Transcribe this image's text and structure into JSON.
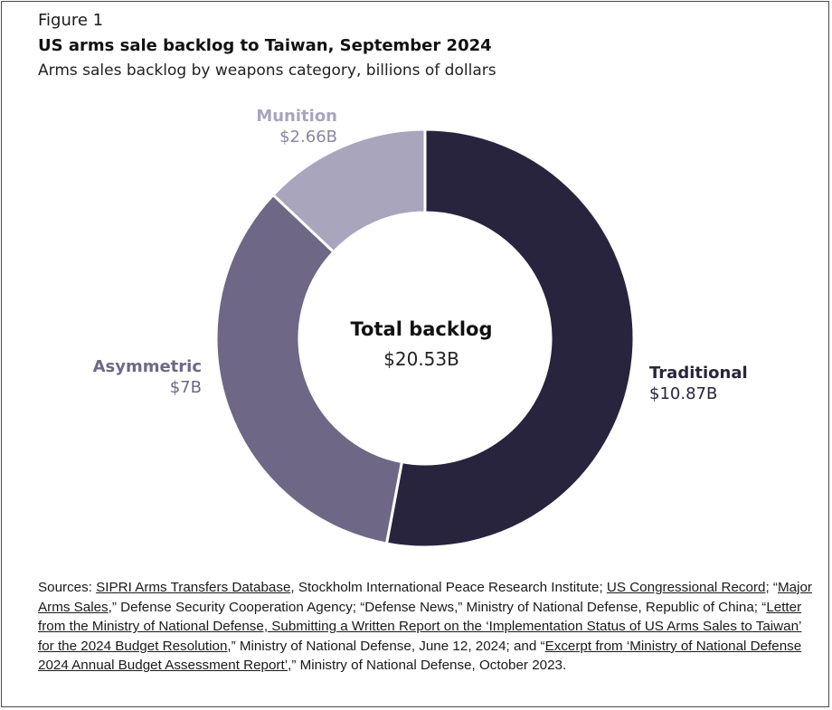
{
  "figure_label": "Figure 1",
  "title": "US arms sale backlog to Taiwan, September 2024",
  "subtitle": "Arms sales backlog by weapons category, billions of dollars",
  "chart_data": {
    "type": "pie",
    "donut": true,
    "title": "US arms sale backlog to Taiwan, September 2024",
    "subtitle": "Arms sales backlog by weapons category, billions of dollars",
    "center_label": "Total backlog",
    "center_value": "$20.53B",
    "total": 20.53,
    "slices": [
      {
        "name": "Traditional",
        "value": 10.87,
        "label": "$10.87B",
        "color": "#29243d"
      },
      {
        "name": "Asymmetric",
        "value": 7.0,
        "label": "$7B",
        "color": "#6e6886"
      },
      {
        "name": "Munition",
        "value": 2.66,
        "label": "$2.66B",
        "color": "#a9a5bd"
      }
    ],
    "legend": "none"
  },
  "sources": {
    "prefix": "Sources: ",
    "link1": "SIPRI Arms Transfers Database",
    "text1": ", Stockholm International Peace Research Institute; ",
    "link2": "US Congressional Record",
    "text2": "; “",
    "link3": "Major Arms Sales",
    "text3": ",” Defense Security Cooperation Agency; “Defense News,” Ministry of National Defense, Republic of China; “",
    "link4": "Letter from the Ministry of National Defense, Submitting a Written Report on the ‘Implementation Status of US Arms Sales to Taiwan’ for the 2024 Budget Resolution",
    "text4": ",” Ministry of National Defense, June 12, 2024; and “",
    "link5": "Excerpt from ‘Ministry of National Defense 2024 Annual Budget Assessment Report’",
    "text5": ",” Ministry of National Defense, October 2023."
  }
}
